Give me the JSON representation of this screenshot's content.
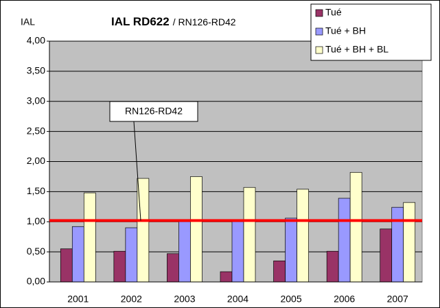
{
  "chart_data": {
    "type": "bar",
    "title": "IAL RD622",
    "subtitle": "/ RN126-RD42",
    "y_label": "IAL",
    "annotation": "RN126-RD42",
    "categories": [
      "2001",
      "2002",
      "2003",
      "2004",
      "2005",
      "2006",
      "2007"
    ],
    "series": [
      {
        "name": "Tué",
        "color": "#993366",
        "values": [
          0.55,
          0.51,
          0.47,
          0.17,
          0.35,
          0.51,
          0.88
        ]
      },
      {
        "name": "Tué + BH",
        "color": "#9999ff",
        "values": [
          0.92,
          0.9,
          1.0,
          1.0,
          1.06,
          1.39,
          1.24
        ]
      },
      {
        "name": "Tué + BH + BL",
        "color": "#ffffcc",
        "values": [
          1.48,
          1.72,
          1.75,
          1.57,
          1.54,
          1.82,
          1.32
        ]
      }
    ],
    "reference_line": 1.02,
    "reference_color": "#ff0000",
    "ylim": [
      0,
      4
    ],
    "yticks": [
      {
        "value": 0,
        "label": "0,00"
      },
      {
        "value": 0.5,
        "label": "0,50"
      },
      {
        "value": 1,
        "label": "1,00"
      },
      {
        "value": 1.5,
        "label": "1,50"
      },
      {
        "value": 2,
        "label": "2,00"
      },
      {
        "value": 2.5,
        "label": "2,50"
      },
      {
        "value": 3,
        "label": "3,00"
      },
      {
        "value": 3.5,
        "label": "3,50"
      },
      {
        "value": 4,
        "label": "4,00"
      }
    ],
    "grid": true,
    "legend": "upper right"
  }
}
